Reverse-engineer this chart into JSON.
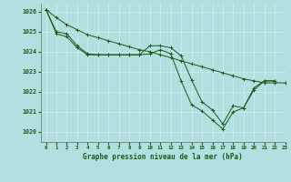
{
  "title": "Graphe pression niveau de la mer (hPa)",
  "bg_color": "#b2dfdf",
  "grid_color": "#d0eeee",
  "line_color": "#1a5c1a",
  "marker_color": "#1a5c1a",
  "xlim": [
    -0.5,
    23
  ],
  "ylim": [
    1019.5,
    1026.4
  ],
  "xticks": [
    0,
    1,
    2,
    3,
    4,
    5,
    6,
    7,
    8,
    9,
    10,
    11,
    12,
    13,
    14,
    15,
    16,
    17,
    18,
    19,
    20,
    21,
    22,
    23
  ],
  "yticks": [
    1020,
    1021,
    1022,
    1023,
    1024,
    1025,
    1026
  ],
  "series": [
    {
      "x": [
        0,
        1,
        2,
        3,
        4,
        5,
        6,
        7,
        8,
        9,
        10,
        11,
        12,
        13,
        14,
        15,
        16,
        17,
        18,
        19,
        20,
        21,
        22,
        23
      ],
      "y": [
        1026.1,
        1025.7,
        1025.35,
        1025.1,
        1024.85,
        1024.7,
        1024.55,
        1024.4,
        1024.25,
        1024.1,
        1024.0,
        1023.85,
        1023.7,
        1023.55,
        1023.4,
        1023.25,
        1023.1,
        1022.95,
        1022.8,
        1022.65,
        1022.55,
        1022.45,
        1022.45,
        1022.45
      ]
    },
    {
      "x": [
        0,
        1,
        2,
        3,
        4,
        5,
        6,
        7,
        8,
        9,
        10,
        11,
        12,
        13,
        14,
        15,
        16,
        17,
        18,
        19,
        20,
        21,
        22
      ],
      "y": [
        1026.1,
        1025.0,
        1024.9,
        1024.3,
        1023.9,
        1023.85,
        1023.85,
        1023.85,
        1023.85,
        1023.85,
        1024.3,
        1024.3,
        1024.2,
        1023.8,
        1022.6,
        1021.5,
        1021.1,
        1020.4,
        1021.3,
        1021.2,
        1022.1,
        1022.55,
        1022.55
      ]
    },
    {
      "x": [
        0,
        1,
        2,
        3,
        4,
        5,
        6,
        7,
        8,
        9,
        10,
        11,
        12,
        13,
        14,
        15,
        16,
        17,
        18,
        19,
        20,
        21,
        22
      ],
      "y": [
        1026.1,
        1024.9,
        1024.75,
        1024.2,
        1023.85,
        1023.85,
        1023.85,
        1023.85,
        1023.85,
        1023.85,
        1023.9,
        1024.1,
        1023.9,
        1022.55,
        1021.35,
        1021.05,
        1020.6,
        1020.15,
        1021.0,
        1021.2,
        1022.2,
        1022.55,
        1022.55
      ]
    }
  ]
}
